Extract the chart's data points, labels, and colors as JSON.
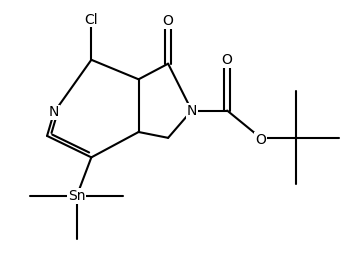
{
  "background": "#ffffff",
  "line_color": "#000000",
  "line_width": 1.5,
  "font_size": 10,
  "fig_width": 3.49,
  "fig_height": 2.64,
  "dpi": 100,
  "xlim": [
    0,
    10
  ],
  "ylim": [
    0,
    7.5
  ]
}
